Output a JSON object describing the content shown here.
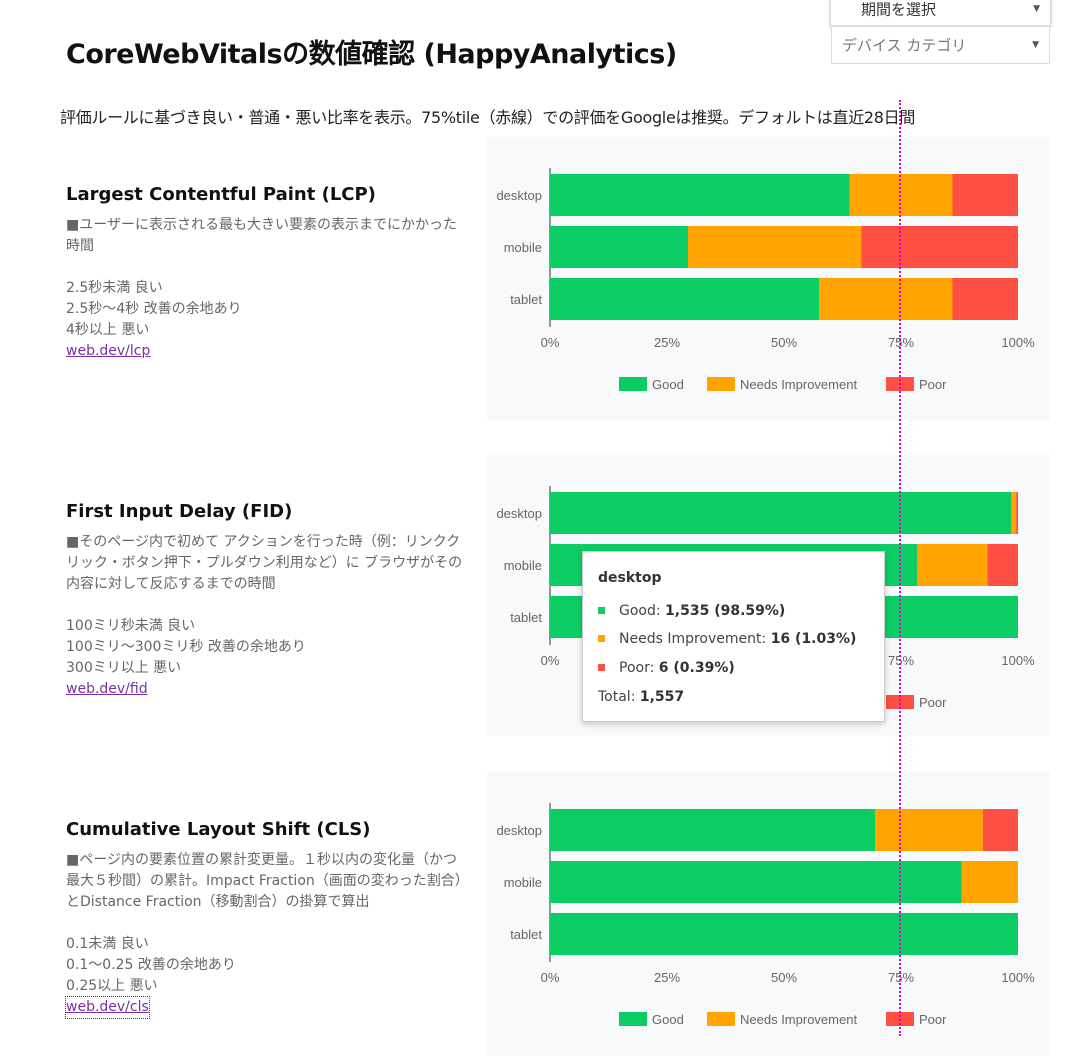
{
  "title": "CoreWebVitalsの数値確認 (HappyAnalytics)",
  "controls": {
    "period_label": "期間を選択",
    "device_label": "デバイス カテゴリ"
  },
  "subtitle": "評価ルールに基づき良い・普通・悪い比率を表示。75%tile（赤線）での評価をGoogleは推奨。デフォルトは直近28日間",
  "colors": {
    "good": "#0ccd64",
    "needs_improvement": "#ffa400",
    "poor": "#ff4e42",
    "reference_line": "#e000c8"
  },
  "reference_line_label": "75%",
  "sections": [
    {
      "title": "Largest Contentful Paint (LCP)",
      "desc": "■ユーザーに表示される最も大きい要素の表示までにかかった時間",
      "rules": [
        "2.5秒未満 良い",
        "2.5秒〜4秒 改善の余地あり",
        "4秒以上 悪い"
      ],
      "link": "web.dev/lcp"
    },
    {
      "title": "First Input Delay (FID)",
      "desc": "■そのページ内で初めて アクションを行った時（例：リンククリック・ボタン押下・プルダウン利用など）に ブラウザがその内容に対して反応するまでの時間",
      "rules": [
        "100ミリ秒未満 良い",
        "100ミリ〜300ミリ秒 改善の余地あり",
        "300ミリ以上 悪い"
      ],
      "link": "web.dev/fid"
    },
    {
      "title": "Cumulative Layout Shift (CLS)",
      "desc": "■ページ内の要素位置の累計変更量。１秒以内の変化量（かつ最大５秒間）の累計。Impact Fraction（画面の変わった割合）とDistance Fraction（移動割合）の掛算で算出",
      "rules": [
        "0.1未満 良い",
        "0.1〜0.25 改善の余地あり",
        "0.25以上 悪い"
      ],
      "link": "web.dev/cls"
    }
  ],
  "tooltip": {
    "category": "desktop",
    "rows": [
      {
        "label": "Good: ",
        "value": "1,535 (98.59%)",
        "color": "#0ccd64"
      },
      {
        "label": "Needs Improvement: ",
        "value": "16 (1.03%)",
        "color": "#ffa400"
      },
      {
        "label": "Poor: ",
        "value": "6 (0.39%)",
        "color": "#ff4e42"
      }
    ],
    "total_label": "Total: ",
    "total_value": "1,557"
  },
  "chart_data": [
    {
      "type": "bar",
      "orientation": "horizontal",
      "stacked": "percent",
      "categories": [
        "desktop",
        "mobile",
        "tablet"
      ],
      "series": [
        {
          "name": "Good",
          "values": [
            64,
            29.5,
            57.5
          ]
        },
        {
          "name": "Needs Improvement",
          "values": [
            22,
            37,
            28.5
          ]
        },
        {
          "name": "Poor",
          "values": [
            14,
            33.5,
            14
          ]
        }
      ],
      "xlim": [
        0,
        100
      ],
      "x_ticks": [
        "0%",
        "25%",
        "50%",
        "75%",
        "100%"
      ],
      "legend": "bottom",
      "grid": false
    },
    {
      "type": "bar",
      "orientation": "horizontal",
      "stacked": "percent",
      "categories": [
        "desktop",
        "mobile",
        "tablet"
      ],
      "series": [
        {
          "name": "Good",
          "values": [
            98.59,
            78.5,
            100
          ]
        },
        {
          "name": "Needs Improvement",
          "values": [
            1.03,
            15,
            0
          ]
        },
        {
          "name": "Poor",
          "values": [
            0.39,
            6.5,
            0
          ]
        }
      ],
      "xlim": [
        0,
        100
      ],
      "x_ticks": [
        "0%",
        "25%",
        "50%",
        "75%",
        "100%"
      ],
      "legend": "bottom",
      "grid": false
    },
    {
      "type": "bar",
      "orientation": "horizontal",
      "stacked": "percent",
      "categories": [
        "desktop",
        "mobile",
        "tablet"
      ],
      "series": [
        {
          "name": "Good",
          "values": [
            69.5,
            88,
            100
          ]
        },
        {
          "name": "Needs Improvement",
          "values": [
            23,
            12,
            0
          ]
        },
        {
          "name": "Poor",
          "values": [
            7.5,
            0,
            0
          ]
        }
      ],
      "xlim": [
        0,
        100
      ],
      "x_ticks": [
        "0%",
        "25%",
        "50%",
        "75%",
        "100%"
      ],
      "legend": "bottom",
      "grid": false
    }
  ]
}
